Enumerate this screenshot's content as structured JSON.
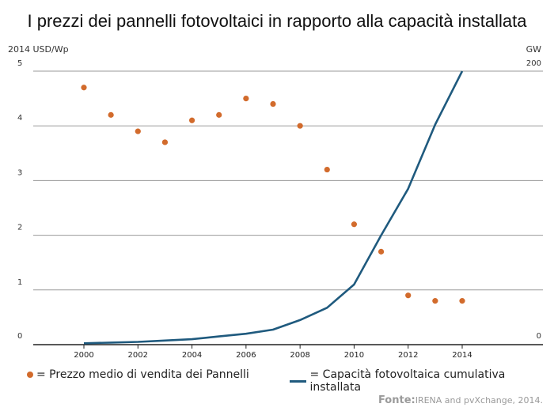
{
  "chart_data": {
    "type": "scatter+line",
    "title": "I prezzi dei pannelli fotovoltaici in rapporto alla capacità installata",
    "y_left_label": "2014 USD/Wp",
    "y_right_label": "GW",
    "y_left_ticks": [
      "0",
      "1",
      "2",
      "3",
      "4",
      "5"
    ],
    "y_right_ticks": [
      "0",
      "200"
    ],
    "ylim_left": [
      0,
      5
    ],
    "ylim_right": [
      0,
      200
    ],
    "x_ticks": [
      "2000",
      "2002",
      "2004",
      "2006",
      "2008",
      "2010",
      "2012",
      "2014"
    ],
    "xlim": [
      2000,
      2014
    ],
    "grid": "horizontal",
    "series": [
      {
        "name": "Prezzo medio di vendita dei Pannelli",
        "type": "scatter",
        "axis": "left",
        "color": "#d26b2c",
        "x": [
          2000,
          2001,
          2002,
          2003,
          2004,
          2005,
          2006,
          2007,
          2008,
          2009,
          2010,
          2011,
          2012,
          2013,
          2014
        ],
        "values": [
          4.7,
          4.2,
          3.9,
          3.7,
          4.1,
          4.2,
          4.5,
          4.4,
          4.0,
          3.2,
          2.2,
          1.7,
          0.9,
          0.8,
          0.8
        ]
      },
      {
        "name": "Capacità fotovoltaica cumulativa installata",
        "type": "line",
        "axis": "right",
        "color": "#1f5a7e",
        "x": [
          2000,
          2001,
          2002,
          2003,
          2004,
          2005,
          2006,
          2007,
          2008,
          2009,
          2010,
          2011,
          2012,
          2013,
          2014
        ],
        "values": [
          1,
          1.5,
          2,
          3,
          4,
          6,
          8,
          11,
          18,
          27,
          44,
          80,
          114,
          161,
          200
        ]
      }
    ],
    "legend": [
      "= Prezzo medio di vendita dei Pannelli",
      "= Capacità fotovoltaica cumulativa installata"
    ],
    "source_prefix": "Fonte:",
    "source_text": "IRENA and pvXchange, 2014."
  }
}
